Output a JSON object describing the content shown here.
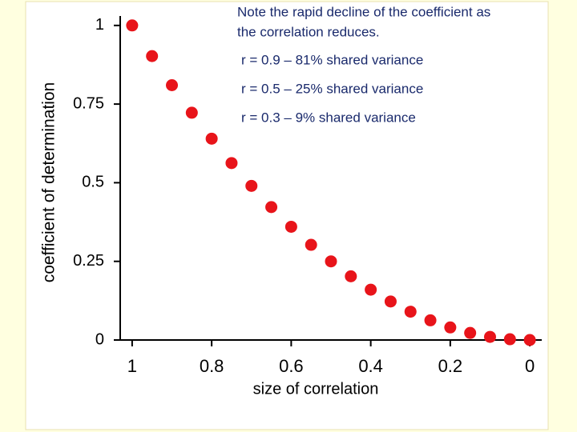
{
  "chart_data": {
    "type": "scatter",
    "annotation_lines": [
      "Note the rapid decline of the coefficient as",
      "the correlation reduces."
    ],
    "notes": [
      "r = 0.9 – 81% shared variance",
      "r = 0.5 – 25% shared variance",
      "r = 0.3 –  9% shared variance"
    ],
    "x_label": "size of correlation",
    "y_label": "coefficient of determination",
    "x": [
      1,
      0.95,
      0.9,
      0.85,
      0.8,
      0.75,
      0.7,
      0.65,
      0.6,
      0.55,
      0.5,
      0.45,
      0.4,
      0.35,
      0.3,
      0.25,
      0.2,
      0.15,
      0.1,
      0.05,
      0
    ],
    "values": [
      1,
      0.9025,
      0.81,
      0.7225,
      0.64,
      0.5625,
      0.49,
      0.4225,
      0.36,
      0.3025,
      0.25,
      0.2025,
      0.16,
      0.1225,
      0.09,
      0.0625,
      0.04,
      0.0225,
      0.01,
      0.0025,
      0
    ],
    "color": "#e8141a",
    "xlim": [
      1.03,
      -0.03
    ],
    "xticks": [
      1,
      0.8,
      0.6,
      0.4,
      0.2,
      0
    ],
    "ylim": [
      0,
      1.03
    ],
    "yticks": [
      0,
      0.25,
      0.5,
      0.75,
      1
    ]
  }
}
